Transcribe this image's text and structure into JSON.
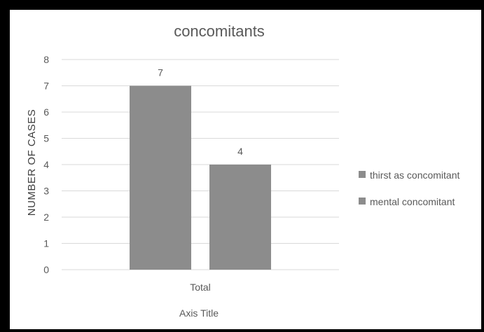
{
  "chart_data": {
    "type": "bar",
    "title": "concomitants",
    "ylabel": "NUMBER OF CASES",
    "xlabel": "Axis Title",
    "categories": [
      "Total"
    ],
    "ylim": [
      0,
      8
    ],
    "yticks": [
      0,
      1,
      2,
      3,
      4,
      5,
      6,
      7,
      8
    ],
    "grid": true,
    "legend_position": "right",
    "series": [
      {
        "name": "thirst as concomitant",
        "values": [
          7
        ],
        "color": "#8c8c8c"
      },
      {
        "name": "mental concomitant",
        "values": [
          4
        ],
        "color": "#8c8c8c"
      }
    ]
  },
  "colors": {
    "frame_border": "#000000",
    "background": "#ffffff",
    "gridline": "#d9d9d9",
    "text": "#595959"
  }
}
